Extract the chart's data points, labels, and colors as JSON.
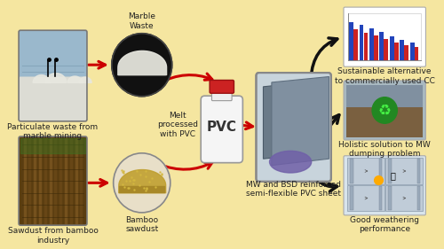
{
  "background_color": "#f5e6a0",
  "border_color": "#b8960a",
  "labels": {
    "marble_waste": "Marble\nWaste",
    "bamboo_sawdust": "Bamboo\nsawdust",
    "pvc": "PVC",
    "melt_processed": "Melt\nprocessed\nwith PVC",
    "particulate_waste": "Particulate waste from\nmarble mining",
    "sawdust_bamboo": "Sawdust from bamboo\nindustry",
    "mw_bsd": "MW and BSD reinforced\nsemi-flexible PVC sheet",
    "outcome1": "Sustainable alternative\nto commercially used CC",
    "outcome2": "Holistic solution to MW\ndumping problem",
    "outcome3": "Good weathering\nperformance"
  },
  "arrow_color_red": "#cc0000",
  "arrow_color_black": "#111111",
  "text_color": "#222222",
  "font_size_label": 6.5,
  "font_size_pvc": 11,
  "font_size_outcome": 6.5
}
